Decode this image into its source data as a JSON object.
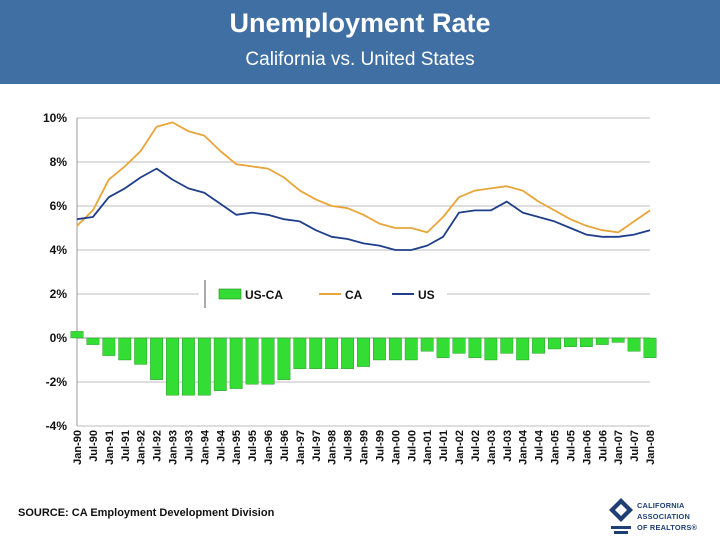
{
  "header": {
    "title": "Unemployment Rate",
    "subtitle": "California vs. United States"
  },
  "source": "SOURCE: CA Employment Development Division",
  "logo": {
    "line1": "CALIFORNIA",
    "line2": "ASSOCIATION",
    "line3": "OF REALTORS®"
  },
  "colors": {
    "header_bg": "#3f6fa3",
    "ca": "#e8a53a",
    "us": "#1f3f8a",
    "gap": "#33dd33",
    "grid": "#bcbcbc"
  },
  "chart_data": {
    "type": "line",
    "ylim": [
      -4,
      10
    ],
    "yticks": [
      "10%",
      "8%",
      "6%",
      "4%",
      "2%",
      "0%",
      "-2%",
      "-4%"
    ],
    "ytick_values": [
      10,
      8,
      6,
      4,
      2,
      0,
      -2,
      -4
    ],
    "x_tick_labels": [
      "Jan-90",
      "Jul-90",
      "Jan-91",
      "Jul-91",
      "Jan-92",
      "Jul-92",
      "Jan-93",
      "Jul-93",
      "Jan-94",
      "Jul-94",
      "Jan-95",
      "Jul-95",
      "Jan-96",
      "Jul-96",
      "Jan-97",
      "Jul-97",
      "Jan-98",
      "Jul-98",
      "Jan-99",
      "Jul-99",
      "Jan-00",
      "Jul-00",
      "Jan-01",
      "Jul-01",
      "Jan-02",
      "Jul-02",
      "Jan-03",
      "Jul-03",
      "Jan-04",
      "Jul-04",
      "Jan-05",
      "Jul-05",
      "Jan-06",
      "Jul-06",
      "Jan-07",
      "Jul-07",
      "Jan-08"
    ],
    "grid": true,
    "legend_position": "inside-middle",
    "legend": [
      "US-CA",
      "CA",
      "US"
    ],
    "series": [
      {
        "name": "CA",
        "style": "line",
        "x": [
          "Jan-90",
          "Jul-90",
          "Jan-91",
          "Jul-91",
          "Jan-92",
          "Jul-92",
          "Jan-93",
          "Jul-93",
          "Jan-94",
          "Jul-94",
          "Jan-95",
          "Jul-95",
          "Jan-96",
          "Jul-96",
          "Jan-97",
          "Jul-97",
          "Jan-98",
          "Jul-98",
          "Jan-99",
          "Jul-99",
          "Jan-00",
          "Jul-00",
          "Jan-01",
          "Jul-01",
          "Jan-02",
          "Jul-02",
          "Jan-03",
          "Jul-03",
          "Jan-04",
          "Jul-04",
          "Jan-05",
          "Jul-05",
          "Jan-06",
          "Jul-06",
          "Jan-07",
          "Jul-07",
          "Jan-08"
        ],
        "values": [
          5.1,
          5.8,
          7.2,
          7.8,
          8.5,
          9.6,
          9.8,
          9.4,
          9.2,
          8.5,
          7.9,
          7.8,
          7.7,
          7.3,
          6.7,
          6.3,
          6.0,
          5.9,
          5.6,
          5.2,
          5.0,
          5.0,
          4.8,
          5.5,
          6.4,
          6.7,
          6.8,
          6.9,
          6.7,
          6.2,
          5.8,
          5.4,
          5.1,
          4.9,
          4.8,
          5.3,
          5.8
        ]
      },
      {
        "name": "US",
        "style": "line",
        "x": [
          "Jan-90",
          "Jul-90",
          "Jan-91",
          "Jul-91",
          "Jan-92",
          "Jul-92",
          "Jan-93",
          "Jul-93",
          "Jan-94",
          "Jul-94",
          "Jan-95",
          "Jul-95",
          "Jan-96",
          "Jul-96",
          "Jan-97",
          "Jul-97",
          "Jan-98",
          "Jul-98",
          "Jan-99",
          "Jul-99",
          "Jan-00",
          "Jul-00",
          "Jan-01",
          "Jul-01",
          "Jan-02",
          "Jul-02",
          "Jan-03",
          "Jul-03",
          "Jan-04",
          "Jul-04",
          "Jan-05",
          "Jul-05",
          "Jan-06",
          "Jul-06",
          "Jan-07",
          "Jul-07",
          "Jan-08"
        ],
        "values": [
          5.4,
          5.5,
          6.4,
          6.8,
          7.3,
          7.7,
          7.2,
          6.8,
          6.6,
          6.1,
          5.6,
          5.7,
          5.6,
          5.4,
          5.3,
          4.9,
          4.6,
          4.5,
          4.3,
          4.2,
          4.0,
          4.0,
          4.2,
          4.6,
          5.7,
          5.8,
          5.8,
          6.2,
          5.7,
          5.5,
          5.3,
          5.0,
          4.7,
          4.6,
          4.6,
          4.7,
          4.9
        ]
      },
      {
        "name": "US-CA",
        "style": "bar",
        "x": [
          "Jan-90",
          "Jul-90",
          "Jan-91",
          "Jul-91",
          "Jan-92",
          "Jul-92",
          "Jan-93",
          "Jul-93",
          "Jan-94",
          "Jul-94",
          "Jan-95",
          "Jul-95",
          "Jan-96",
          "Jul-96",
          "Jan-97",
          "Jul-97",
          "Jan-98",
          "Jul-98",
          "Jan-99",
          "Jul-99",
          "Jan-00",
          "Jul-00",
          "Jan-01",
          "Jul-01",
          "Jan-02",
          "Jul-02",
          "Jan-03",
          "Jul-03",
          "Jan-04",
          "Jul-04",
          "Jan-05",
          "Jul-05",
          "Jan-06",
          "Jul-06",
          "Jan-07",
          "Jul-07",
          "Jan-08"
        ],
        "values": [
          0.3,
          -0.3,
          -0.8,
          -1.0,
          -1.2,
          -1.9,
          -2.6,
          -2.6,
          -2.6,
          -2.4,
          -2.3,
          -2.1,
          -2.1,
          -1.9,
          -1.4,
          -1.4,
          -1.4,
          -1.4,
          -1.3,
          -1.0,
          -1.0,
          -1.0,
          -0.6,
          -0.9,
          -0.7,
          -0.9,
          -1.0,
          -0.7,
          -1.0,
          -0.7,
          -0.5,
          -0.4,
          -0.4,
          -0.3,
          -0.2,
          -0.6,
          -0.9
        ]
      }
    ]
  }
}
